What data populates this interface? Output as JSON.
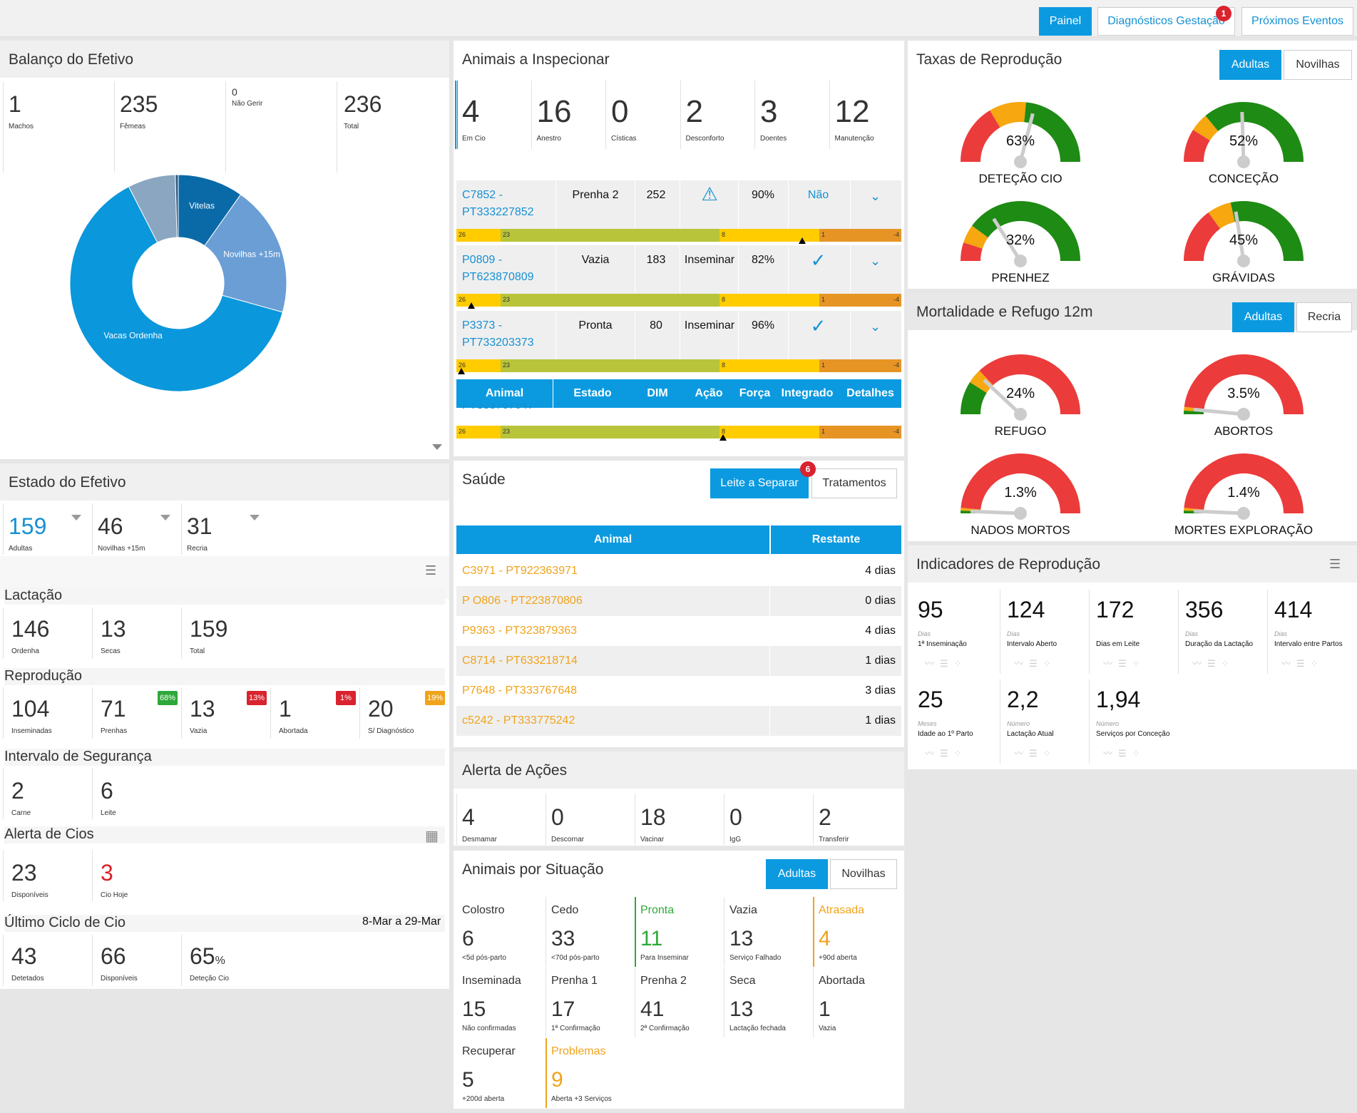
{
  "topbar": {
    "tabs": [
      "Painel",
      "Diagnósticos Gestação",
      "Próximos Eventos"
    ],
    "badge": "1"
  },
  "balanco": {
    "title": "Balanço do Efetivo",
    "stats": [
      {
        "n": "1",
        "l": "Machos"
      },
      {
        "n": "235",
        "l": "Fêmeas"
      },
      {
        "n": "0",
        "l": "Não Gerir"
      },
      {
        "n": "236",
        "l": "Total"
      }
    ],
    "chart_data": {
      "type": "pie",
      "categories": [
        "Vitelas",
        "Novilhas +15m",
        "Vacas Ordenha",
        "",
        ""
      ],
      "values": [
        22,
        44,
        142,
        16,
        1
      ],
      "colors": [
        "#0a6aa8",
        "#6a9ed5",
        "#0a97dc",
        "#8aa6c0",
        "#355a80"
      ]
    }
  },
  "inspecionar": {
    "title": "Animais a Inspecionar",
    "stats": [
      {
        "n": "4",
        "l": "Em Cio"
      },
      {
        "n": "16",
        "l": "Anestro"
      },
      {
        "n": "0",
        "l": "Císticas"
      },
      {
        "n": "2",
        "l": "Desconforto"
      },
      {
        "n": "3",
        "l": "Doentes"
      },
      {
        "n": "12",
        "l": "Manutenção"
      }
    ],
    "rows": [
      {
        "animal1": "C7852 -",
        "animal2": "PT333227852",
        "estado": "Prenha 2",
        "dim": "252",
        "acao": "⚠",
        "forca": "90%",
        "integ": "Não"
      },
      {
        "animal1": "P0809 -",
        "animal2": "PT623870809",
        "estado": "Vazia",
        "dim": "183",
        "acao": "Inseminar",
        "forca": "82%",
        "integ": "✓"
      },
      {
        "animal1": "P3373 -",
        "animal2": "PT733203373",
        "estado": "Pronta",
        "dim": "80",
        "acao": "Inseminar",
        "forca": "96%",
        "integ": "✓"
      }
    ],
    "partial": "PT333767647",
    "bar": {
      "a": "26",
      "b": "23",
      "c": "8",
      "d": "1",
      "e": "-4"
    },
    "headers": [
      "Animal",
      "Estado",
      "DIM",
      "Ação",
      "Força",
      "Integrado",
      "Detalhes"
    ]
  },
  "taxas": {
    "title": "Taxas de Reprodução",
    "tabs": [
      "Adultas",
      "Novilhas"
    ],
    "gauges": [
      {
        "v": "63%",
        "l": "DETEÇÃO CIO"
      },
      {
        "v": "52%",
        "l": "CONCEÇÃO"
      },
      {
        "v": "32%",
        "l": "PRENHEZ"
      },
      {
        "v": "45%",
        "l": "GRÁVIDAS"
      }
    ]
  },
  "mortal": {
    "title": "Mortalidade e Refugo 12m",
    "tabs": [
      "Adultas",
      "Recria"
    ],
    "gauges": [
      {
        "v": "24%",
        "l": "REFUGO"
      },
      {
        "v": "3.5%",
        "l": "ABORTOS"
      },
      {
        "v": "1.3%",
        "l": "NADOS MORTOS"
      },
      {
        "v": "1.4%",
        "l": "MORTES EXPLORAÇÃO"
      }
    ]
  },
  "estado": {
    "title": "Estado do Efetivo",
    "top": [
      {
        "n": "159",
        "l": "Adultas"
      },
      {
        "n": "46",
        "l": "Novilhas +15m"
      },
      {
        "n": "31",
        "l": "Recria"
      }
    ],
    "lact_t": "Lactação",
    "lact": [
      {
        "n": "146",
        "l": "Ordenha"
      },
      {
        "n": "13",
        "l": "Secas"
      },
      {
        "n": "159",
        "l": "Total"
      }
    ],
    "rep_t": "Reprodução",
    "rep": [
      {
        "n": "104",
        "l": "Inseminadas"
      },
      {
        "n": "71",
        "l": "Prenhas",
        "p": "68%"
      },
      {
        "n": "13",
        "l": "Vazia",
        "p": "13%"
      },
      {
        "n": "1",
        "l": "Abortada",
        "p": "1%"
      },
      {
        "n": "20",
        "l": "S/ Diagnóstico",
        "p": "19%"
      }
    ],
    "int_t": "Intervalo de Segurança",
    "int": [
      {
        "n": "2",
        "l": "Carne"
      },
      {
        "n": "6",
        "l": "Leite"
      }
    ],
    "cio_t": "Alerta de Cios",
    "cio": [
      {
        "n": "23",
        "l": "Disponíveis"
      },
      {
        "n": "3",
        "l": "Cio Hoje"
      }
    ],
    "ult_t": "Último Ciclo de Cio",
    "ult_d": "8-Mar a 29-Mar",
    "ult": [
      {
        "n": "43",
        "l": "Detetados"
      },
      {
        "n": "66",
        "l": "Disponíveis"
      },
      {
        "n": "65",
        "u": "%",
        "l": "Deteção Cio"
      }
    ]
  },
  "saude": {
    "title": "Saúde",
    "tabs": [
      "Leite a Separar",
      "Tratamentos"
    ],
    "badge": "6",
    "headers": [
      "Animal",
      "Restante"
    ],
    "rows": [
      [
        "C3971 - PT922363971",
        "4 dias"
      ],
      [
        "P O806 - PT223870806",
        "0 dias"
      ],
      [
        "P9363 - PT323879363",
        "4 dias"
      ],
      [
        "C8714 - PT633218714",
        "1 dias"
      ],
      [
        "P7648 - PT333767648",
        "3 dias"
      ],
      [
        "c5242 - PT333775242",
        "1 dias"
      ]
    ]
  },
  "alerta": {
    "title": "Alerta de Ações",
    "stats": [
      {
        "n": "4",
        "l": "Desmamar"
      },
      {
        "n": "0",
        "l": "Descornar"
      },
      {
        "n": "18",
        "l": "Vacinar"
      },
      {
        "n": "0",
        "l": "IgG"
      },
      {
        "n": "2",
        "l": "Transferir"
      }
    ]
  },
  "situacao": {
    "title": "Animais por Situação",
    "tabs": [
      "Adultas",
      "Novilhas"
    ],
    "items": [
      {
        "t": "Colostro",
        "n": "6",
        "s": "<5d pós-parto"
      },
      {
        "t": "Cedo",
        "n": "33",
        "s": "<70d pós-parto"
      },
      {
        "t": "Pronta",
        "n": "11",
        "s": "Para Inseminar",
        "c": "#2ea83a"
      },
      {
        "t": "Vazia",
        "n": "13",
        "s": "Serviço Falhado"
      },
      {
        "t": "Atrasada",
        "n": "4",
        "s": "+90d aberta",
        "c": "#f0a31b"
      },
      {
        "t": "Inseminada",
        "n": "15",
        "s": "Não confirmadas"
      },
      {
        "t": "Prenha 1",
        "n": "17",
        "s": "1ª Confirmação"
      },
      {
        "t": "Prenha 2",
        "n": "41",
        "s": "2ª Confirmação"
      },
      {
        "t": "Seca",
        "n": "13",
        "s": "Lactação fechada"
      },
      {
        "t": "Abortada",
        "n": "1",
        "s": "Vazia"
      },
      {
        "t": "Recuperar",
        "n": "5",
        "s": "+200d aberta"
      },
      {
        "t": "Problemas",
        "n": "9",
        "s": "Aberta +3 Serviços",
        "c": "#f0a31b"
      }
    ]
  },
  "indic": {
    "title": "Indicadores de Reprodução",
    "items": [
      {
        "n": "95",
        "u": "Dias",
        "l": "1ª Inseminação"
      },
      {
        "n": "124",
        "u": "Dias",
        "l": "Intervalo Aberto"
      },
      {
        "n": "172",
        "u": "",
        "l": "Dias em Leite"
      },
      {
        "n": "356",
        "u": "Dias",
        "l": "Duração da Lactação"
      },
      {
        "n": "414",
        "u": "Dias",
        "l": "Intervalo entre Partos"
      },
      {
        "n": "25",
        "u": "Meses",
        "l": "Idade ao 1º Parto"
      },
      {
        "n": "2,2",
        "u": "Número",
        "l": "Lactação Atual"
      },
      {
        "n": "1,94",
        "u": "Número",
        "l": "Serviços por Conceção"
      }
    ]
  }
}
